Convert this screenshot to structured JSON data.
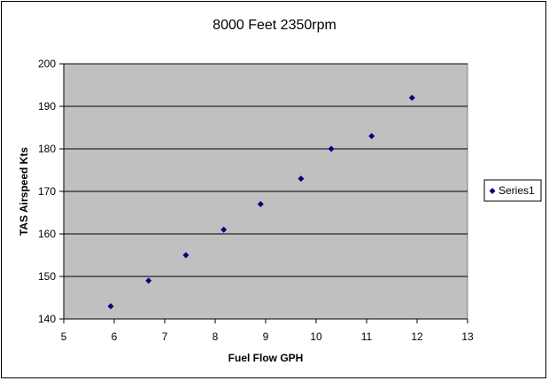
{
  "chart_data": {
    "type": "scatter",
    "title": "8000 Feet 2350rpm",
    "xlabel": "Fuel Flow GPH",
    "ylabel": "TAS Airspeed Kts",
    "xlim": [
      5,
      13
    ],
    "ylim": [
      140,
      200
    ],
    "x_ticks": [
      "5",
      "6",
      "7",
      "8",
      "9",
      "10",
      "11",
      "12",
      "13"
    ],
    "y_ticks": [
      "140",
      "150",
      "160",
      "170",
      "180",
      "190",
      "200"
    ],
    "grid": "horizontal",
    "legend_position": "right",
    "series": [
      {
        "name": "Series1",
        "color": "#000080",
        "marker": "diamond",
        "points": [
          {
            "x": 5.93,
            "y": 143
          },
          {
            "x": 6.68,
            "y": 149
          },
          {
            "x": 7.42,
            "y": 155
          },
          {
            "x": 8.17,
            "y": 161
          },
          {
            "x": 8.9,
            "y": 167
          },
          {
            "x": 9.7,
            "y": 173
          },
          {
            "x": 10.3,
            "y": 180
          },
          {
            "x": 11.1,
            "y": 183
          },
          {
            "x": 11.9,
            "y": 192
          }
        ]
      }
    ],
    "plot_area_color": "#c0c0c0"
  }
}
